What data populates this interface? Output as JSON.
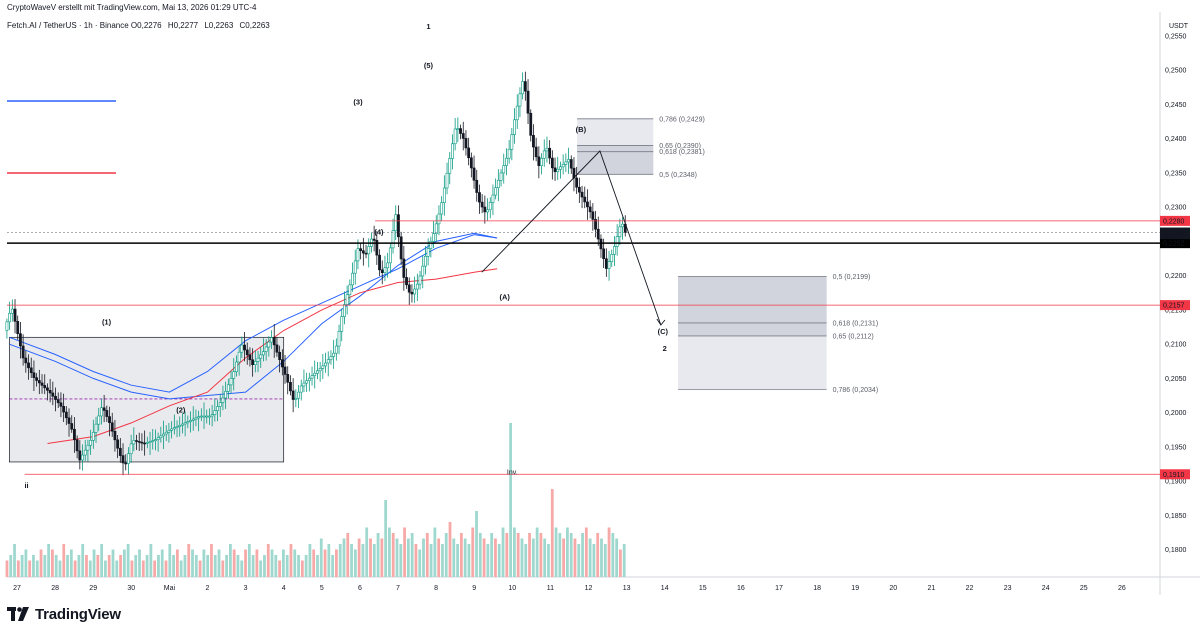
{
  "header": {
    "creator_line": "CryptoWaveV erstellt mit TradingView.com, Mai 13, 2026 01:29 UTC-4",
    "symbol": "Fetch.AI / TetherUS · 1h · Binance",
    "ohlc": [
      "O0,2276",
      "H0,2277",
      "L0,2263",
      "C0,2263"
    ]
  },
  "branding": {
    "logo_text": "TradingView"
  },
  "colors": {
    "up": "#089981",
    "down": "#131722",
    "ma_blue": "#2962ff",
    "ma_red": "#f23645",
    "level_red": "#f23645",
    "price_black": "#000000",
    "box_fill": "#d1d4dc",
    "dashed_purple": "#9c27b0"
  },
  "chart_data": {
    "type": "candlestick",
    "currency_label": "USDT",
    "y_range": [
      0.176,
      0.2585
    ],
    "y_ticks": [
      "0,2550",
      "0,2500",
      "0,2450",
      "0,2400",
      "0,2350",
      "0,2300",
      "0,2250",
      "0,2200",
      "0,2150",
      "0,2100",
      "0,2050",
      "0,2000",
      "0,1950",
      "0,1900",
      "0,1850",
      "0,1800"
    ],
    "x_ticks": [
      "27",
      "28",
      "29",
      "30",
      "Mai",
      "2",
      "3",
      "4",
      "5",
      "6",
      "7",
      "8",
      "9",
      "10",
      "11",
      "12",
      "13",
      "14",
      "15",
      "16",
      "17",
      "18",
      "19",
      "20",
      "21",
      "22",
      "23",
      "24",
      "25",
      "26"
    ],
    "price_path": [
      [
        0,
        0.212
      ],
      [
        2,
        0.2155
      ],
      [
        5,
        0.208
      ],
      [
        8,
        0.205
      ],
      [
        12,
        0.203
      ],
      [
        15,
        0.201
      ],
      [
        18,
        0.1975
      ],
      [
        20,
        0.193
      ],
      [
        23,
        0.196
      ],
      [
        26,
        0.201
      ],
      [
        28,
        0.1985
      ],
      [
        30,
        0.195
      ],
      [
        32,
        0.192
      ],
      [
        34,
        0.196
      ],
      [
        37,
        0.1955
      ],
      [
        40,
        0.196
      ],
      [
        44,
        0.1975
      ],
      [
        48,
        0.1985
      ],
      [
        52,
        0.1995
      ],
      [
        55,
        0.1995
      ],
      [
        58,
        0.202
      ],
      [
        61,
        0.206
      ],
      [
        63,
        0.21
      ],
      [
        66,
        0.207
      ],
      [
        69,
        0.209
      ],
      [
        71,
        0.211
      ],
      [
        73,
        0.208
      ],
      [
        75,
        0.205
      ],
      [
        77,
        0.2015
      ],
      [
        79,
        0.204
      ],
      [
        82,
        0.2055
      ],
      [
        85,
        0.207
      ],
      [
        88,
        0.209
      ],
      [
        90,
        0.215
      ],
      [
        92,
        0.219
      ],
      [
        94,
        0.224
      ],
      [
        96,
        0.223
      ],
      [
        98,
        0.226
      ],
      [
        100,
        0.22
      ],
      [
        102,
        0.222
      ],
      [
        104,
        0.229
      ],
      [
        106,
        0.22
      ],
      [
        108,
        0.217
      ],
      [
        110,
        0.219
      ],
      [
        112,
        0.223
      ],
      [
        114,
        0.226
      ],
      [
        116,
        0.23
      ],
      [
        118,
        0.236
      ],
      [
        120,
        0.242
      ],
      [
        122,
        0.24
      ],
      [
        124,
        0.236
      ],
      [
        126,
        0.231
      ],
      [
        128,
        0.229
      ],
      [
        130,
        0.232
      ],
      [
        132,
        0.235
      ],
      [
        134,
        0.238
      ],
      [
        136,
        0.244
      ],
      [
        138,
        0.249
      ],
      [
        140,
        0.24
      ],
      [
        142,
        0.236
      ],
      [
        144,
        0.239
      ],
      [
        146,
        0.235
      ],
      [
        148,
        0.236
      ],
      [
        150,
        0.237
      ],
      [
        152,
        0.233
      ],
      [
        154,
        0.231
      ],
      [
        156,
        0.229
      ],
      [
        158,
        0.225
      ],
      [
        160,
        0.221
      ],
      [
        162,
        0.224
      ],
      [
        164,
        0.228
      ],
      [
        165,
        0.2263
      ]
    ],
    "volume_profile": [
      3,
      4,
      6,
      3,
      4,
      5,
      3,
      4,
      3,
      5,
      4,
      6,
      5,
      4,
      3,
      6,
      4,
      5,
      3,
      4,
      6,
      4,
      3,
      5,
      4,
      6,
      3,
      4,
      5,
      3,
      4,
      5,
      6,
      3,
      4,
      5,
      3,
      4,
      6,
      3,
      4,
      5,
      3,
      6,
      4,
      5,
      3,
      4,
      6,
      5,
      4,
      3,
      5,
      4,
      6,
      4,
      5,
      3,
      4,
      6,
      5,
      4,
      3,
      5,
      6,
      4,
      5,
      3,
      4,
      6,
      5,
      4,
      3,
      5,
      4,
      6,
      5,
      4,
      3,
      4,
      6,
      5,
      4,
      7,
      5,
      6,
      4,
      5,
      6,
      7,
      8,
      6,
      5,
      7,
      6,
      9,
      7,
      6,
      8,
      7,
      14,
      9,
      8,
      7,
      6,
      9,
      7,
      8,
      6,
      5,
      7,
      8,
      6,
      9,
      7,
      6,
      8,
      10,
      7,
      6,
      8,
      7,
      6,
      9,
      12,
      8,
      7,
      6,
      8,
      7,
      6,
      9,
      8,
      28,
      9,
      8,
      7,
      6,
      8,
      7,
      9,
      8,
      7,
      6,
      16,
      9,
      8,
      7,
      9,
      8,
      7,
      6,
      8,
      9,
      7,
      6,
      8,
      7,
      6,
      9,
      8,
      7,
      5,
      6
    ],
    "annotations": [
      {
        "label": "1",
        "x": 10.8,
        "y": 0.256
      },
      {
        "label": "(5)",
        "x": 10.8,
        "y": 0.2503
      },
      {
        "label": "(3)",
        "x": 8.95,
        "y": 0.245
      },
      {
        "label": "(4)",
        "x": 9.5,
        "y": 0.226
      },
      {
        "label": "(1)",
        "x": 2.35,
        "y": 0.2129
      },
      {
        "label": "(2)",
        "x": 4.3,
        "y": 0.2
      },
      {
        "label": "ii",
        "x": 0.25,
        "y": 0.189
      },
      {
        "label": "(A)",
        "x": 12.8,
        "y": 0.2165
      },
      {
        "label": "(B)",
        "x": 14.8,
        "y": 0.241
      },
      {
        "label": "(C)",
        "x": 16.95,
        "y": 0.2115
      },
      {
        "label": "2",
        "x": 17.0,
        "y": 0.209
      },
      {
        "label": "Inv.",
        "x": 13.0,
        "y": 0.191
      }
    ],
    "horizontal_levels": [
      {
        "label": "0,2280",
        "value": 0.228,
        "color": "#f23645"
      },
      {
        "label": "0,2157",
        "value": 0.2157,
        "color": "#f23645"
      },
      {
        "label": "0,1910",
        "value": 0.191,
        "color": "#f23645"
      }
    ],
    "price_labels": [
      {
        "label": "0,2263",
        "value": 0.2263
      },
      {
        "label": "30:37",
        "value": 0.22555
      },
      {
        "label": "0,2252",
        "value": 0.22475
      }
    ],
    "fib_upper": [
      {
        "label": "0,786 (0,2429)",
        "value": 0.2429
      },
      {
        "label": "0,65 (0,2390)",
        "value": 0.239
      },
      {
        "label": "0,618 (0,2381)",
        "value": 0.2381
      },
      {
        "label": "0,5 (0,2348)",
        "value": 0.2348
      }
    ],
    "fib_lower": [
      {
        "label": "0,5 (0,2199)",
        "value": 0.2199
      },
      {
        "label": "0,618 (0,2131)",
        "value": 0.2131
      },
      {
        "label": "0,65 (0,2112)",
        "value": 0.2112
      },
      {
        "label": "0,786 (0,2034)",
        "value": 0.2034
      }
    ],
    "projection": [
      [
        12.2,
        0.2205
      ],
      [
        15.3,
        0.2382
      ],
      [
        16.9,
        0.2128
      ]
    ],
    "range_box": {
      "x_from": -0.2,
      "x_to": 7.0,
      "y_from": 0.1928,
      "y_to": 0.211,
      "mid": 0.202
    }
  }
}
